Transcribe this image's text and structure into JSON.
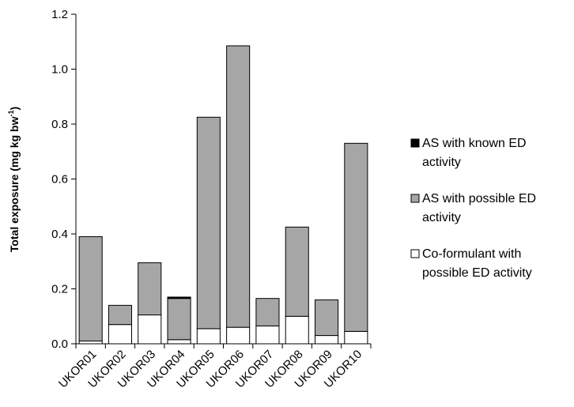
{
  "chart_data": {
    "type": "bar",
    "stacked": true,
    "title": "",
    "xlabel": "",
    "ylabel": "Total exposure  (mg kg bw",
    "ylabel_superscript": "-1",
    "ylabel_suffix": ")",
    "ylim": [
      0,
      1.2
    ],
    "yticks": [
      "0.0",
      "0.2",
      "0.4",
      "0.6",
      "0.8",
      "1.0",
      "1.2"
    ],
    "categories": [
      "UKOR01",
      "UKOR02",
      "UKOR03",
      "UKOR04",
      "UKOR05",
      "UKOR06",
      "UKOR07",
      "UKOR08",
      "UKOR09",
      "UKOR10"
    ],
    "series": [
      {
        "name": "Co-formulant with possible ED activity",
        "legend_lines": [
          "Co-formulant with",
          "possible ED activity"
        ],
        "color": "#ffffff",
        "values": [
          0.01,
          0.07,
          0.105,
          0.015,
          0.055,
          0.06,
          0.065,
          0.1,
          0.03,
          0.045
        ]
      },
      {
        "name": "AS with possible ED activity",
        "legend_lines": [
          "AS with possible ED",
          "activity"
        ],
        "color": "#a6a6a6",
        "values": [
          0.38,
          0.07,
          0.19,
          0.15,
          0.77,
          1.025,
          0.1,
          0.325,
          0.13,
          0.685
        ]
      },
      {
        "name": "AS with known ED activity",
        "legend_lines": [
          "AS with known ED",
          "activity"
        ],
        "color": "#000000",
        "values": [
          0,
          0,
          0,
          0.005,
          0,
          0,
          0,
          0,
          0,
          0
        ]
      }
    ],
    "legend": {
      "position": "right"
    },
    "grid": false
  }
}
